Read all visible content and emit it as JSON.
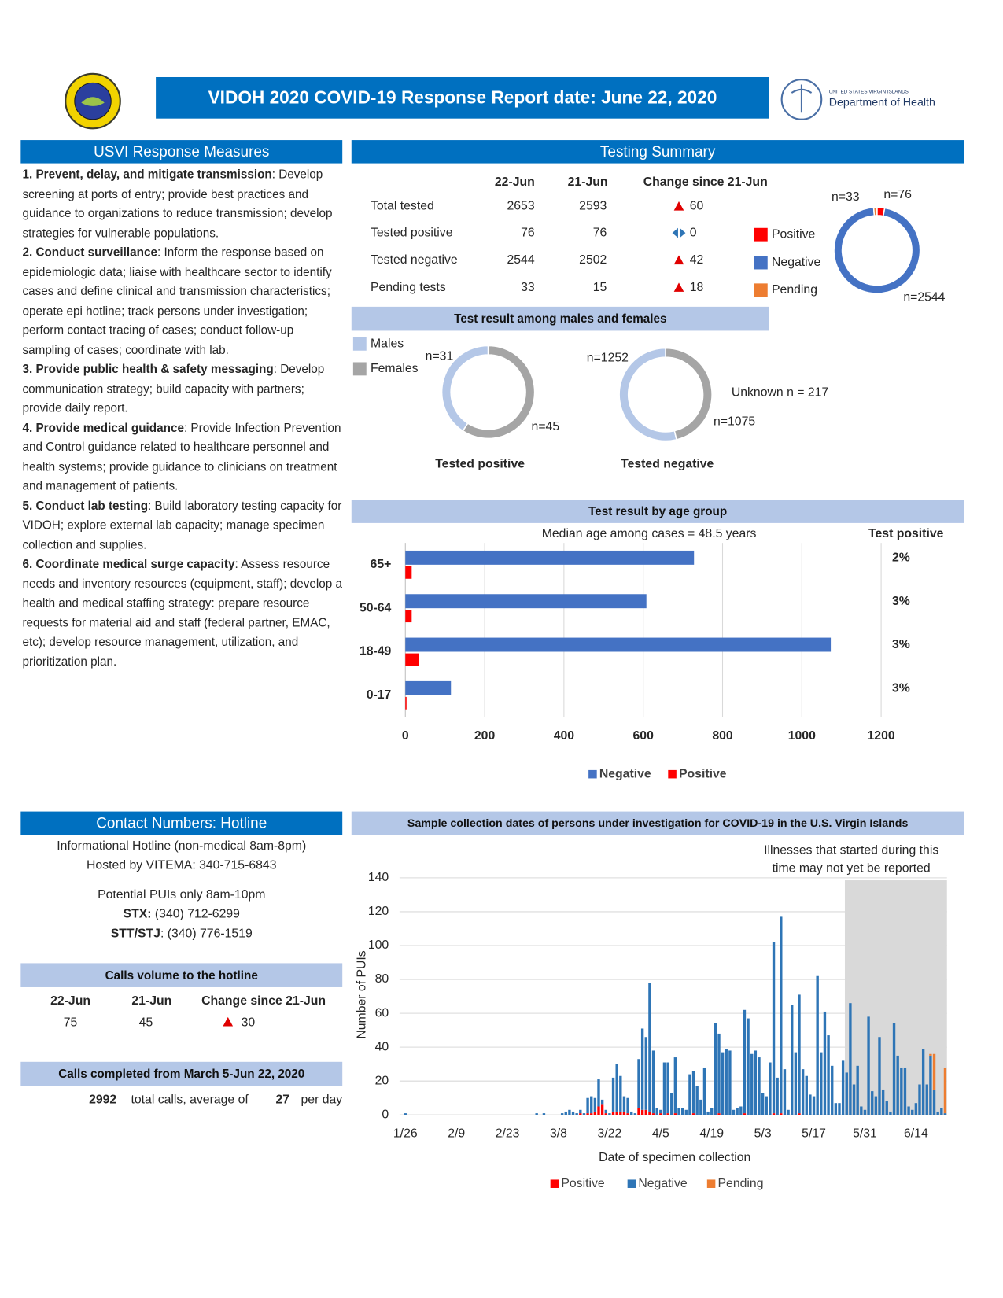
{
  "header": {
    "title": "VIDOH 2020 COVID-19 Response Report date: June 22, 2020",
    "agency_small": "UNITED STATES VIRGIN ISLANDS",
    "agency": "Department of Health"
  },
  "measures": {
    "title": "USVI Response Measures",
    "items": [
      {
        "head": "1. Prevent, delay, and mitigate transmission",
        "text": ": Develop screening at ports of entry; provide best practices and guidance to organizations to reduce transmission; develop strategies  for vulnerable populations."
      },
      {
        "head": "2. Conduct surveillance",
        "text": ": Inform the response based on epidemiologic data; liaise with healthcare sector to identify cases and define clinical and transmission characteristics; operate epi hotline; track persons under investigation; perform contact tracing of cases; conduct follow-up sampling of cases; coordinate with lab."
      },
      {
        "head": "3. Provide public health & safety messaging",
        "text": ": Develop communication strategy; build capacity with partners; provide daily report."
      },
      {
        "head": "4. Provide medical guidance",
        "text": ": Provide Infection Prevention and Control guidance related to healthcare personnel and health systems; provide guidance to clinicians on treatment and management of patients."
      },
      {
        "head": "5. Conduct lab testing",
        "text": ": Build laboratory testing capacity for VIDOH; explore external lab capacity; manage specimen collection and supplies."
      },
      {
        "head": "6. Coordinate medical surge capacity",
        "text": ": Assess resource needs and inventory resources (equipment, staff); develop a health and medical staffing strategy: prepare resource requests for material aid and staff (federal partner, EMAC, etc); develop resource management, utilization, and prioritization plan."
      }
    ]
  },
  "testing_summary": {
    "title": "Testing Summary",
    "columns": [
      "22-Jun",
      "21-Jun",
      "Change since 21-Jun"
    ],
    "rows": [
      {
        "label": "Total tested",
        "values": [
          2653,
          2593
        ],
        "change": 60,
        "direction": "up"
      },
      {
        "label": "Tested positive",
        "values": [
          76,
          76
        ],
        "change": 0,
        "direction": "same"
      },
      {
        "label": "Tested negative",
        "values": [
          2544,
          2502
        ],
        "change": 42,
        "direction": "up"
      },
      {
        "label": "Pending tests",
        "values": [
          33,
          15
        ],
        "change": 18,
        "direction": "up"
      }
    ]
  },
  "contact": {
    "title": "Contact Numbers: Hotline",
    "lines": [
      "Informational Hotline (non-medical 8am-8pm)",
      "Hosted by VITEMA: 340-715-6843",
      "Potential PUIs only 8am-10pm"
    ],
    "numbers": [
      {
        "label": "STX:",
        "number": " (340) 712-6299"
      },
      {
        "label": "STT/STJ",
        "number": ": (340) 776-1519"
      }
    ]
  },
  "calls_volume": {
    "title": "Calls volume to the hotline",
    "columns": [
      "22-Jun",
      "21-Jun",
      "Change since 21-Jun"
    ],
    "values": [
      75,
      45
    ],
    "change": 30,
    "direction": "up"
  },
  "calls_completed": {
    "title": "Calls completed from March 5-Jun 22, 2020",
    "total": 2992,
    "total_text": "total calls, average of",
    "average": 27,
    "average_text": "per day"
  },
  "chart_data": [
    {
      "type": "donut",
      "series": [
        {
          "name": "Positive",
          "color": "#ff0000",
          "values": [
            76
          ],
          "value_labels": [
            "n=76"
          ]
        },
        {
          "name": "Negative",
          "color": "#4472c4",
          "values": [
            2544
          ],
          "value_labels": [
            "n=2544"
          ]
        },
        {
          "name": "Pending",
          "color": "#ed7d31",
          "values": [
            33
          ],
          "value_labels": [
            "n=33"
          ]
        }
      ]
    },
    {
      "type": "donut",
      "title": "Test result among males and females",
      "categories": [
        "Tested positive",
        "Tested negative"
      ],
      "series": [
        {
          "name": "Males",
          "color": "#b4c7e7",
          "values": [
            31,
            1252
          ],
          "value_labels": [
            "n=31",
            "n=1252"
          ]
        },
        {
          "name": "Females",
          "color": "#a5a5a5",
          "values": [
            45,
            1075
          ],
          "value_labels": [
            "n=45",
            "n=1075"
          ]
        }
      ],
      "annotation": "Unknown n = 217"
    },
    {
      "type": "hbar",
      "title": "Test result by age group",
      "subtitle": "Median age among cases = 48.5 years",
      "categories": [
        "65+",
        "50-64",
        "18-49",
        "0-17"
      ],
      "series": [
        {
          "name": "Negative",
          "color": "#4472c4",
          "values": [
            728,
            608,
            1073,
            115
          ]
        },
        {
          "name": "Positive",
          "color": "#ff0000",
          "values": [
            16,
            16,
            35,
            3
          ]
        }
      ],
      "xlim": [
        0,
        1200
      ],
      "xticks": [
        0,
        200,
        400,
        600,
        800,
        1000,
        1200
      ],
      "grid": true,
      "side_title": "Test positive",
      "side_labels": [
        "2%",
        "3%",
        "3%",
        "3%"
      ]
    },
    {
      "type": "stacked_bar",
      "title": "Sample collection dates of persons under investigation for COVID-19 in the U.S. Virgin Islands",
      "xlabel": "Date of specimen collection",
      "ylabel": "Number of PUIs",
      "ylim": [
        0,
        140
      ],
      "yticks": [
        0,
        20,
        40,
        60,
        80,
        100,
        120,
        140
      ],
      "grid": true,
      "annotation": {
        "lines": [
          "Illnesses that started during this",
          "time may not yet be reported"
        ],
        "start": 121
      },
      "categories": [
        "1/26",
        null,
        null,
        null,
        null,
        null,
        null,
        null,
        null,
        null,
        null,
        null,
        null,
        null,
        "2/9",
        null,
        null,
        null,
        null,
        null,
        null,
        null,
        null,
        null,
        null,
        null,
        null,
        null,
        "2/23",
        null,
        null,
        null,
        null,
        null,
        null,
        null,
        null,
        null,
        null,
        null,
        null,
        null,
        "3/8",
        null,
        null,
        null,
        null,
        null,
        null,
        null,
        null,
        null,
        null,
        null,
        null,
        null,
        "3/22",
        null,
        null,
        null,
        null,
        null,
        null,
        null,
        null,
        null,
        null,
        null,
        null,
        null,
        "4/5",
        null,
        null,
        null,
        null,
        null,
        null,
        null,
        null,
        null,
        null,
        null,
        null,
        null,
        "4/19",
        null,
        null,
        null,
        null,
        null,
        null,
        null,
        null,
        null,
        null,
        null,
        null,
        null,
        "5/3",
        null,
        null,
        null,
        null,
        null,
        null,
        null,
        null,
        null,
        null,
        null,
        null,
        null,
        "5/17",
        null,
        null,
        null,
        null,
        null,
        null,
        null,
        null,
        null,
        null,
        null,
        null,
        null,
        "5/31",
        null,
        null,
        null,
        null,
        null,
        null,
        null,
        null,
        null,
        null,
        null,
        null,
        null,
        "6/14",
        null,
        null,
        null,
        null,
        null,
        null,
        null,
        null
      ],
      "series": [
        {
          "name": "Positive",
          "color": "#ff0000",
          "values": [
            0,
            0,
            0,
            0,
            0,
            0,
            0,
            0,
            0,
            0,
            0,
            0,
            0,
            0,
            0,
            0,
            0,
            0,
            0,
            0,
            0,
            0,
            0,
            0,
            0,
            0,
            0,
            0,
            0,
            0,
            0,
            0,
            0,
            0,
            0,
            0,
            0,
            0,
            0,
            0,
            0,
            0,
            0,
            0,
            0,
            0,
            0,
            0,
            1,
            0,
            1,
            1,
            2,
            5,
            6,
            1,
            0,
            2,
            2,
            2,
            2,
            1,
            0,
            0,
            4,
            3,
            3,
            2,
            1,
            0,
            1,
            0,
            1,
            0,
            1,
            0,
            0,
            0,
            0,
            1,
            0,
            0,
            0,
            0,
            0,
            0,
            1,
            0,
            0,
            0,
            0,
            0,
            0,
            1,
            0,
            0,
            0,
            0,
            0,
            0,
            0,
            1,
            0,
            1,
            0,
            0,
            0,
            0,
            1,
            0,
            0,
            0,
            0,
            0,
            0,
            0,
            0,
            0,
            0,
            0,
            0,
            0,
            0,
            0,
            0,
            0,
            0,
            0,
            0,
            0,
            0,
            0,
            0,
            0,
            0,
            0,
            0,
            0,
            0,
            0,
            0,
            0,
            0,
            0,
            0,
            0,
            0,
            0,
            0
          ]
        },
        {
          "name": "Negative",
          "color": "#2e75b6",
          "values": [
            1,
            0,
            0,
            0,
            0,
            0,
            0,
            0,
            0,
            0,
            0,
            0,
            0,
            0,
            0,
            0,
            0,
            0,
            0,
            0,
            0,
            0,
            0,
            0,
            0,
            0,
            0,
            0,
            0,
            0,
            0,
            0,
            0,
            0,
            0,
            0,
            1,
            0,
            1,
            0,
            0,
            0,
            0,
            1,
            2,
            3,
            2,
            1,
            2,
            1,
            9,
            10,
            8,
            16,
            3,
            2,
            1,
            20,
            28,
            21,
            9,
            9,
            2,
            1,
            29,
            48,
            43,
            76,
            37,
            4,
            2,
            31,
            30,
            13,
            33,
            4,
            4,
            3,
            24,
            25,
            17,
            9,
            28,
            2,
            4,
            54,
            47,
            37,
            39,
            38,
            3,
            4,
            5,
            61,
            57,
            36,
            38,
            34,
            13,
            11,
            31,
            101,
            22,
            116,
            27,
            3,
            65,
            37,
            70,
            27,
            23,
            12,
            11,
            82,
            37,
            61,
            47,
            29,
            7,
            7,
            32,
            25,
            66,
            18,
            29,
            5,
            3,
            58,
            14,
            11,
            46,
            15,
            8,
            2,
            54,
            35,
            28,
            28,
            5,
            3,
            7,
            18,
            39,
            18,
            35,
            15,
            2,
            4,
            1
          ]
        },
        {
          "name": "Pending",
          "color": "#ed7d31",
          "values": [
            0,
            0,
            0,
            0,
            0,
            0,
            0,
            0,
            0,
            0,
            0,
            0,
            0,
            0,
            0,
            0,
            0,
            0,
            0,
            0,
            0,
            0,
            0,
            0,
            0,
            0,
            0,
            0,
            0,
            0,
            0,
            0,
            0,
            0,
            0,
            0,
            0,
            0,
            0,
            0,
            0,
            0,
            0,
            0,
            0,
            0,
            0,
            0,
            0,
            0,
            0,
            0,
            0,
            0,
            0,
            0,
            0,
            0,
            0,
            0,
            0,
            0,
            0,
            0,
            0,
            0,
            0,
            0,
            0,
            0,
            0,
            0,
            0,
            0,
            0,
            0,
            0,
            0,
            0,
            0,
            0,
            0,
            0,
            0,
            0,
            0,
            0,
            0,
            0,
            0,
            0,
            0,
            0,
            0,
            0,
            0,
            0,
            0,
            0,
            0,
            0,
            0,
            0,
            0,
            0,
            0,
            0,
            0,
            0,
            0,
            0,
            0,
            0,
            0,
            0,
            0,
            0,
            0,
            0,
            0,
            0,
            0,
            0,
            0,
            0,
            0,
            0,
            0,
            0,
            0,
            0,
            0,
            0,
            0,
            0,
            0,
            0,
            0,
            0,
            0,
            0,
            0,
            0,
            0,
            1,
            21,
            0,
            0,
            27
          ]
        }
      ]
    }
  ]
}
